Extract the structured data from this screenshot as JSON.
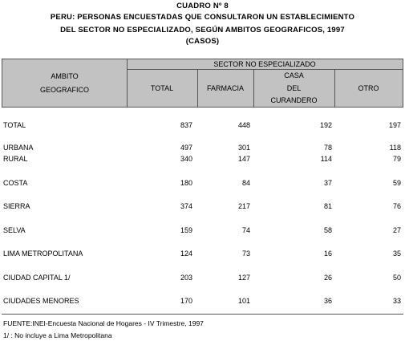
{
  "title": {
    "line1": "CUADRO Nº 8",
    "line2": "PERU: PERSONAS ENCUESTADAS QUE CONSULTARON UN ESTABLECIMIENTO",
    "line3": "DEL SECTOR NO ESPECIALIZADO, SEGÚN AMBITOS GEOGRAFICOS, 1997",
    "line4": "(CASOS)"
  },
  "header": {
    "row_header_line1": "AMBITO",
    "row_header_line2": "GEOGRAFICO",
    "group": "SECTOR NO ESPECIALIZADO",
    "col_total": "TOTAL",
    "col_farmacia": "FARMACIA",
    "col_casa_line1": "CASA",
    "col_casa_line2": "DEL",
    "col_casa_line3": "CURANDERO",
    "col_otro": "OTRO"
  },
  "rows": [
    {
      "label": "TOTAL",
      "total": "837",
      "farmacia": "448",
      "curandero": "192",
      "otro": "197"
    },
    {
      "label": "URBANA",
      "total": "497",
      "farmacia": "301",
      "curandero": "78",
      "otro": "118"
    },
    {
      "label": "RURAL",
      "total": "340",
      "farmacia": "147",
      "curandero": "114",
      "otro": "79"
    },
    {
      "label": "COSTA",
      "total": "180",
      "farmacia": "84",
      "curandero": "37",
      "otro": "59"
    },
    {
      "label": "SIERRA",
      "total": "374",
      "farmacia": "217",
      "curandero": "81",
      "otro": "76"
    },
    {
      "label": "SELVA",
      "total": "159",
      "farmacia": "74",
      "curandero": "58",
      "otro": "27"
    },
    {
      "label": "LIMA METROPOLITANA",
      "total": "124",
      "farmacia": "73",
      "curandero": "16",
      "otro": "35"
    },
    {
      "label": "CIUDAD CAPITAL 1/",
      "total": "203",
      "farmacia": "127",
      "curandero": "26",
      "otro": "50"
    },
    {
      "label": "CIUDADES MENORES",
      "total": "170",
      "farmacia": "101",
      "curandero": "36",
      "otro": "33"
    }
  ],
  "footer": {
    "source": "FUENTE:INEI-Encuesta Nacional de Hogares - IV Trimestre, 1997",
    "note": "1/ : No incluye a Lima Metropolitana"
  }
}
